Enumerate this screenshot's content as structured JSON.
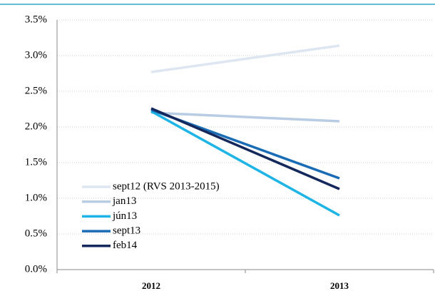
{
  "chart_data": {
    "type": "line",
    "categories": [
      "2012",
      "2013"
    ],
    "series": [
      {
        "name": "sept12 (RVS 2013-2015)",
        "color": "#dde6f1",
        "values": [
          2.77,
          3.14
        ]
      },
      {
        "name": "jan13",
        "color": "#b8cce4",
        "values": [
          2.2,
          2.08
        ]
      },
      {
        "name": "jún13",
        "color": "#1fb4e6",
        "values": [
          2.22,
          0.76
        ]
      },
      {
        "name": "sept13",
        "color": "#1a6cb4",
        "values": [
          2.24,
          1.28
        ]
      },
      {
        "name": "feb14",
        "color": "#14285c",
        "values": [
          2.26,
          1.13
        ]
      }
    ],
    "ylim": [
      0,
      3.5
    ],
    "yticks": [
      {
        "value": 0,
        "label": "0.0%"
      },
      {
        "value": 0.5,
        "label": "0.5%"
      },
      {
        "value": 1,
        "label": "1.0%"
      },
      {
        "value": 1.5,
        "label": "1.5%"
      },
      {
        "value": 2,
        "label": "2.0%"
      },
      {
        "value": 2.5,
        "label": "2.5%"
      },
      {
        "value": 3,
        "label": "3.0%"
      },
      {
        "value": 3.5,
        "label": "3.5%"
      }
    ],
    "grid": true,
    "legend": "lower-left"
  }
}
